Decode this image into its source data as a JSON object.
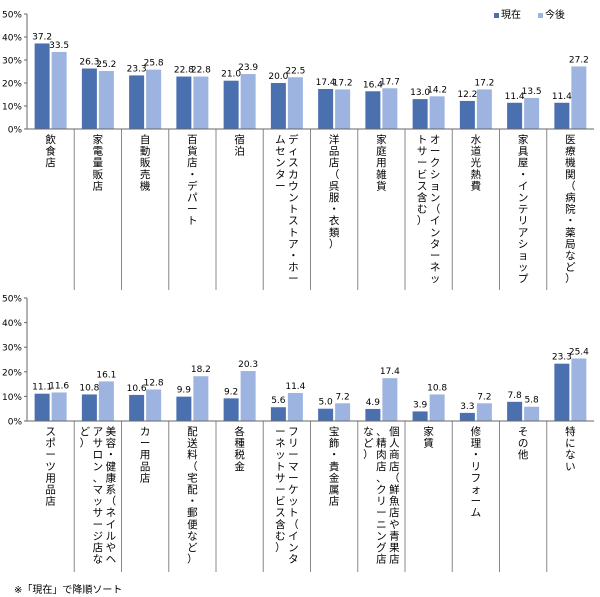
{
  "chart_data": [
    {
      "type": "bar",
      "ylim": [
        0,
        50
      ],
      "yticks": [
        "0%",
        "10%",
        "20%",
        "30%",
        "40%",
        "50%"
      ],
      "legend_position": "top-right",
      "categories": [
        "飲食店",
        "家電量販店",
        "自動販売機",
        "百貨店・デパート",
        "宿泊",
        "ディスカウントストア・ホームセンター",
        "洋品店（呉服・衣類）",
        "家庭用雑貨",
        "オークション（インターネットサービス含む）",
        "水道光熱費",
        "家具屋・インテリアショップ",
        "医療機関（病院・薬局など）"
      ],
      "series": [
        {
          "name": "現在",
          "color": "#4a70b0",
          "values": [
            37.2,
            26.3,
            23.3,
            22.8,
            21.0,
            20.0,
            17.4,
            16.4,
            13.0,
            12.2,
            11.4,
            11.4
          ]
        },
        {
          "name": "今後",
          "color": "#9db4e0",
          "values": [
            33.5,
            25.2,
            25.8,
            22.8,
            23.9,
            22.5,
            17.2,
            17.7,
            14.2,
            17.2,
            13.5,
            27.2
          ]
        }
      ]
    },
    {
      "type": "bar",
      "ylim": [
        0,
        50
      ],
      "yticks": [
        "0%",
        "10%",
        "20%",
        "30%",
        "40%",
        "50%"
      ],
      "categories": [
        "スポーツ用品店",
        "美容・健康系（ネイルやヘアサロン、マッサージ店など）",
        "カー用品店",
        "配送料（宅配・郵便など）",
        "各種税金",
        "フリーマーケット（インターネットサービス含む）",
        "宝飾・貴金属店",
        "個人商店（鮮魚店や青果店、精肉店、クリーニング店など）",
        "家賃",
        "修理・リフォーム",
        "その他",
        "特にない"
      ],
      "series": [
        {
          "name": "現在",
          "color": "#4a70b0",
          "values": [
            11.1,
            10.8,
            10.6,
            9.9,
            9.2,
            5.6,
            5.0,
            4.9,
            3.9,
            3.3,
            7.8,
            23.3
          ]
        },
        {
          "name": "今後",
          "color": "#9db4e0",
          "values": [
            11.6,
            16.1,
            12.8,
            18.2,
            20.3,
            11.4,
            7.2,
            17.4,
            10.8,
            7.2,
            5.8,
            25.4
          ]
        }
      ]
    }
  ],
  "footnote": "※「現在」で降順ソート"
}
